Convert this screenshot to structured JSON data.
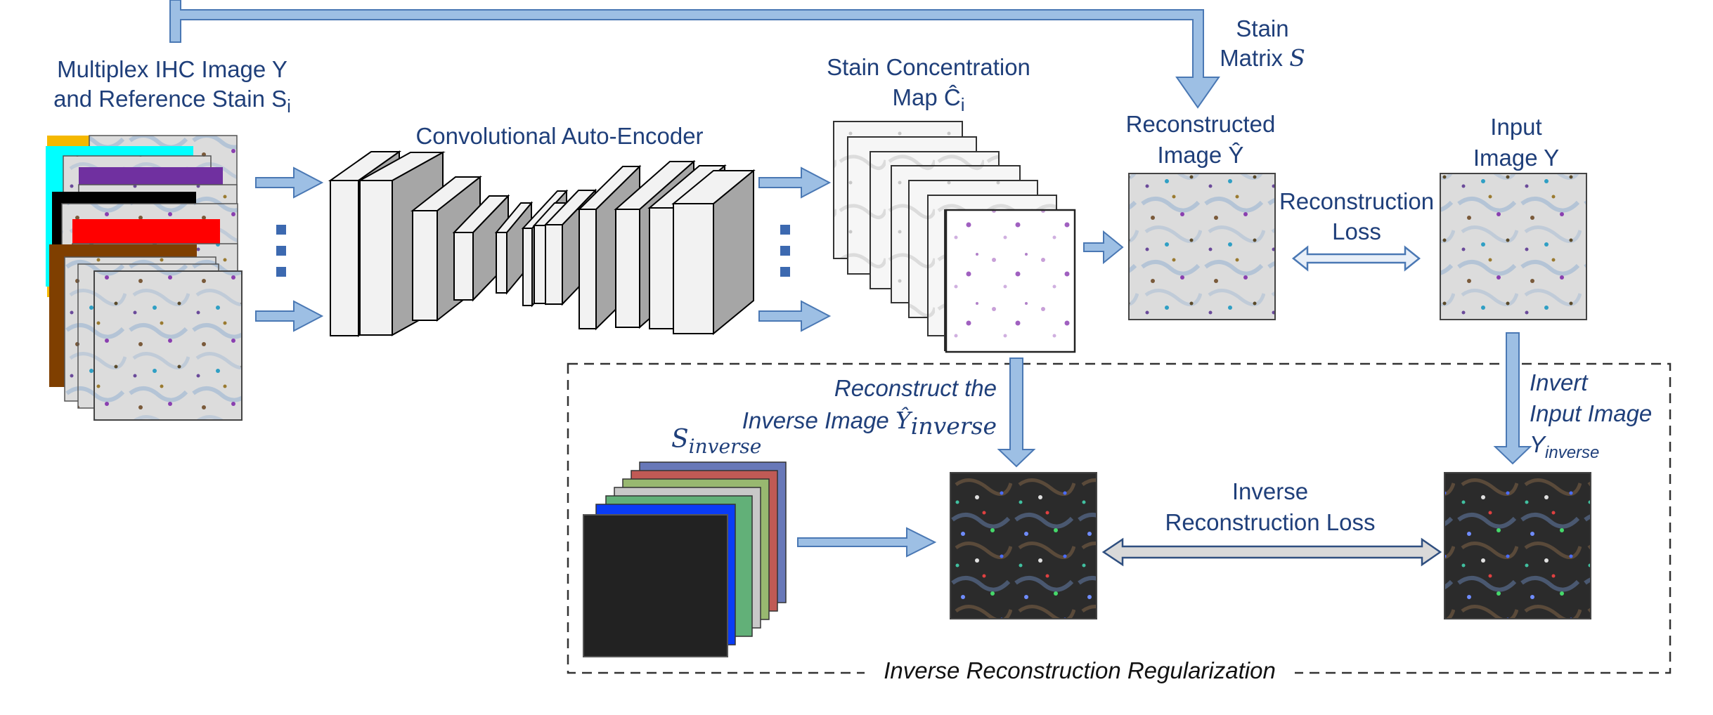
{
  "labels": {
    "input_title_line1": "Multiplex IHC Image Y",
    "input_title_line2_prefix": "and Reference Stain S",
    "input_title_line2_sub": "i",
    "encoder_title": "Convolutional Auto-Encoder",
    "concentration_line1": "Stain Concentration",
    "concentration_line2_prefix": "Map Ĉ",
    "concentration_line2_sub": "i",
    "stain_matrix_line1": "Stain",
    "stain_matrix_line2_prefix": "Matrix ",
    "stain_matrix_symbol": "S",
    "reconstructed_line1": "Reconstructed",
    "reconstructed_line2": "Image Ŷ",
    "input_image_line1": "Input",
    "input_image_line2": "Image Y",
    "reconstruction_loss_line1": "Reconstruction",
    "reconstruction_loss_line2": "Loss",
    "reconstruct_inverse_line1": "Reconstruct the",
    "reconstruct_inverse_line2_prefix": "Inverse Image ",
    "reconstruct_inverse_symbol": "Ŷ",
    "reconstruct_inverse_sub": "inverse",
    "invert_line1": "Invert",
    "invert_line2": "Input Image",
    "invert_line3_prefix": "Y",
    "invert_line3_sub": "inverse",
    "s_inverse_symbol": "S",
    "s_inverse_sub": "inverse",
    "inverse_loss_line1": "Inverse",
    "inverse_loss_line2": "Reconstruction Loss",
    "regularization_title": "Inverse Reconstruction Regularization"
  },
  "colors": {
    "label_text": "#1f3f7a",
    "arrow_fill": "#9dbfe4",
    "arrow_stroke": "#4a78b4",
    "block_face": "#f2f2f2",
    "block_side": "#a6a6a6",
    "dots": "#3c69b0",
    "reference_stains": [
      "#f5b800",
      "#00ffff",
      "#7030a0",
      "#000000",
      "#ff0000",
      "#7f3f00"
    ],
    "inverse_stains": [
      "#6878b8",
      "#c05a55",
      "#98b870",
      "#c8c8c8",
      "#62b078",
      "#0a3cf5",
      "#222222"
    ]
  }
}
